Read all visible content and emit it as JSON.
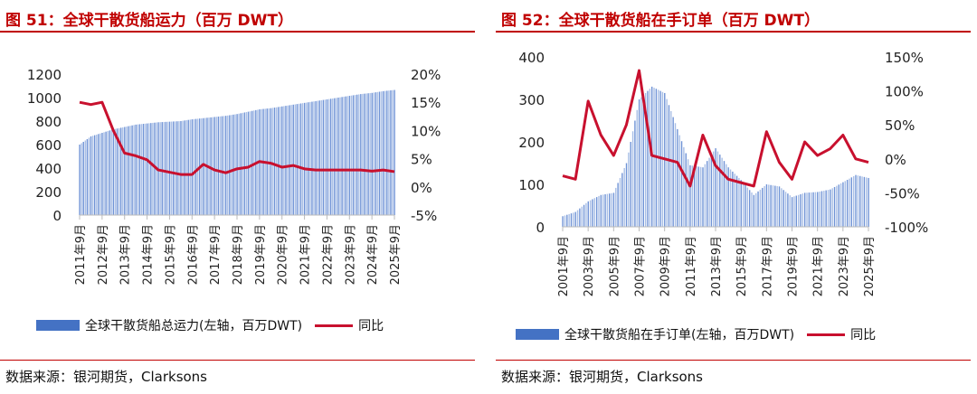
{
  "chart_data": [
    {
      "type": "bar+line",
      "title": "图 51：全球干散货船运力（百万 DWT）",
      "legend": [
        "全球干散货船总运力(左轴，百万DWT)",
        "同比"
      ],
      "source": "数据来源：银河期货，Clarksons",
      "ylim": [
        0,
        1200
      ],
      "yticks": [
        "1200",
        "1000",
        "800",
        "600",
        "400",
        "200",
        "0"
      ],
      "y2lim": [
        -5,
        20
      ],
      "y2ticks": [
        "20%",
        "15%",
        "10%",
        "5%",
        "0%",
        "-5%"
      ],
      "xticks": [
        "2011年9月",
        "2012年9月",
        "2013年9月",
        "2014年9月",
        "2015年9月",
        "2016年9月",
        "2017年9月",
        "2018年9月",
        "2019年9月",
        "2020年9月",
        "2021年9月",
        "2022年9月",
        "2023年9月",
        "2024年9月",
        "2025年9月"
      ],
      "x": [
        "2011-09",
        "2012-03",
        "2012-09",
        "2013-03",
        "2013-09",
        "2014-03",
        "2014-09",
        "2015-03",
        "2015-09",
        "2016-03",
        "2016-09",
        "2017-03",
        "2017-09",
        "2018-03",
        "2018-09",
        "2019-03",
        "2019-09",
        "2020-03",
        "2020-09",
        "2021-03",
        "2021-09",
        "2022-03",
        "2022-09",
        "2023-03",
        "2023-09",
        "2024-03",
        "2024-09",
        "2025-03",
        "2025-09"
      ],
      "bars": [
        600,
        670,
        700,
        730,
        750,
        770,
        780,
        790,
        795,
        800,
        815,
        825,
        835,
        845,
        860,
        880,
        900,
        910,
        925,
        940,
        955,
        970,
        985,
        1000,
        1015,
        1030,
        1040,
        1055,
        1065
      ],
      "line": [
        15,
        14.6,
        15,
        10,
        6,
        5.5,
        4.8,
        3,
        2.6,
        2.2,
        2.2,
        4,
        3,
        2.5,
        3.2,
        3.5,
        4.5,
        4.2,
        3.5,
        3.8,
        3.2,
        3,
        3,
        3,
        3,
        3,
        2.8,
        3,
        2.7
      ]
    },
    {
      "type": "bar+line",
      "title": "图 52：全球干散货船在手订单（百万 DWT）",
      "legend": [
        "全球干散货船在手订单(左轴，百万DWT)",
        "同比"
      ],
      "source": "数据来源：银河期货，Clarksons",
      "ylim": [
        0,
        400
      ],
      "yticks": [
        "400",
        "300",
        "200",
        "100",
        "0"
      ],
      "y2lim": [
        -100,
        150
      ],
      "y2ticks": [
        "150%",
        "100%",
        "50%",
        "0%",
        "-50%",
        "-100%"
      ],
      "xticks": [
        "2001年9月",
        "2003年9月",
        "2005年9月",
        "2007年9月",
        "2009年9月",
        "2011年9月",
        "2013年9月",
        "2015年9月",
        "2017年9月",
        "2019年9月",
        "2021年9月",
        "2023年9月",
        "2025年9月"
      ],
      "x": [
        "2001",
        "2002",
        "2003",
        "2004",
        "2005",
        "2006",
        "2007",
        "2008",
        "2009",
        "2010",
        "2011",
        "2012",
        "2013",
        "2014",
        "2015",
        "2016",
        "2017",
        "2018",
        "2019",
        "2020",
        "2021",
        "2022",
        "2023",
        "2024",
        "2025"
      ],
      "bars": [
        25,
        35,
        60,
        75,
        80,
        150,
        300,
        330,
        315,
        230,
        145,
        140,
        185,
        140,
        110,
        75,
        100,
        95,
        70,
        80,
        82,
        88,
        105,
        122,
        115
      ],
      "line": [
        -25,
        -30,
        85,
        35,
        5,
        50,
        130,
        5,
        0,
        -5,
        -40,
        35,
        -10,
        -30,
        -35,
        -40,
        40,
        -5,
        -30,
        25,
        5,
        15,
        35,
        0,
        -5
      ]
    }
  ]
}
